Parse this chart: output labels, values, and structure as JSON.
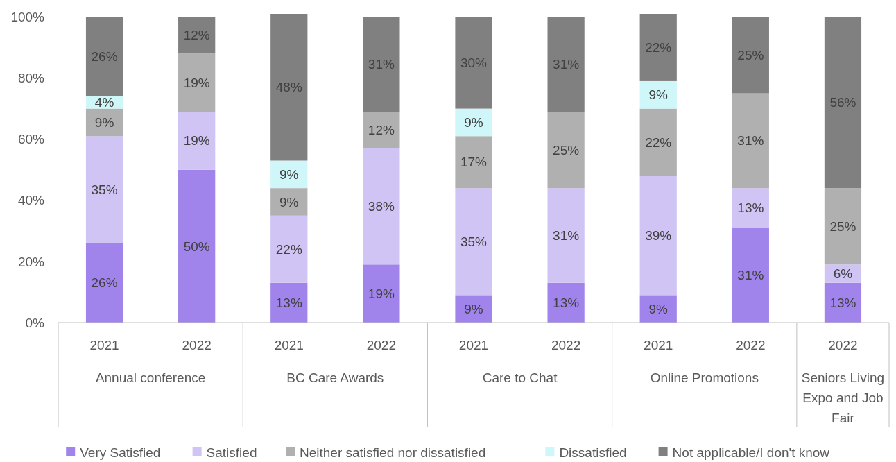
{
  "chart_data": {
    "type": "bar",
    "stacked": true,
    "legend": "bottom",
    "grid": false,
    "categories": [
      "2021",
      "2022",
      "2021",
      "2022",
      "2021",
      "2022",
      "2021",
      "2022",
      "2022"
    ],
    "annotations": [
      "Annual conference",
      "BC Care Awards",
      "Care to Chat",
      "Online Promotions",
      "Seniors Living Expo and Job Fair"
    ],
    "ylim": [
      0,
      101
    ],
    "yticks": [
      {
        "value": 0,
        "label": "0%"
      },
      {
        "value": 20,
        "label": "20%"
      },
      {
        "value": 40,
        "label": "40%"
      },
      {
        "value": 60,
        "label": "60%"
      },
      {
        "value": 80,
        "label": "80%"
      },
      {
        "value": 100,
        "label": "100%"
      }
    ],
    "series": [
      {
        "name": "Very Satisfied",
        "color": "#a084ec",
        "values": [
          26,
          50,
          13,
          19,
          9,
          13,
          9,
          31,
          13
        ],
        "value_labels": [
          "26%",
          "50%",
          "13%",
          "19%",
          "9%",
          "13%",
          "9%",
          "31%",
          "13%"
        ]
      },
      {
        "name": "Satisfied",
        "color": "#d0c4f4",
        "values": [
          35,
          19,
          22,
          38,
          35,
          31,
          39,
          13,
          6
        ],
        "value_labels": [
          "35%",
          "19%",
          "22%",
          "38%",
          "35%",
          "31%",
          "39%",
          "13%",
          "6%"
        ]
      },
      {
        "name": "Neither satisfied nor dissatisfied",
        "color": "#b0b0b0",
        "values": [
          9,
          19,
          9,
          12,
          17,
          25,
          22,
          31,
          25
        ],
        "value_labels": [
          "9%",
          "19%",
          "9%",
          "12%",
          "17%",
          "25%",
          "22%",
          "31%",
          "25%"
        ]
      },
      {
        "name": "Dissatisfied",
        "color": "#cff6f9",
        "values": [
          4,
          null,
          9,
          null,
          9,
          null,
          9,
          null,
          null
        ],
        "value_labels": [
          "4%",
          null,
          "9%",
          null,
          "9%",
          null,
          "9%",
          null,
          null
        ]
      },
      {
        "name": "Not applicable/I don't know",
        "color": "#808080",
        "values": [
          26,
          12,
          48,
          31,
          30,
          31,
          22,
          25,
          56
        ],
        "value_labels": [
          "26%",
          "12%",
          "48%",
          "31%",
          "30%",
          "31%",
          "22%",
          "25%",
          "56%"
        ]
      }
    ]
  }
}
